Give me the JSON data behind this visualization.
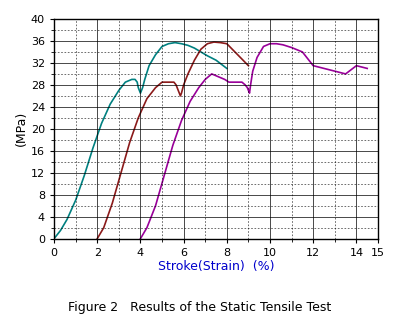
{
  "title": "Figure 2   Results of the Static Tensile Test",
  "xlabel": "Stroke(Strain)  (%)",
  "ylabel": "(MPa)",
  "xlim": [
    0,
    15
  ],
  "ylim": [
    0,
    40
  ],
  "xticks_major": [
    0,
    2,
    4,
    6,
    8,
    10,
    12,
    14,
    15
  ],
  "yticks_major": [
    0,
    4,
    8,
    12,
    16,
    20,
    24,
    28,
    32,
    36,
    40
  ],
  "xticks_minor_interval": 1,
  "yticks_minor_interval": 2,
  "curves": [
    {
      "color": "#008080",
      "points_x": [
        0.0,
        0.3,
        0.6,
        1.0,
        1.4,
        1.8,
        2.2,
        2.6,
        3.0,
        3.3,
        3.6,
        3.75,
        3.85,
        3.9,
        3.95,
        4.0,
        4.05,
        4.1,
        4.2,
        4.4,
        4.7,
        5.0,
        5.3,
        5.6,
        5.9,
        6.2,
        6.5,
        6.8,
        7.1,
        7.5,
        8.0
      ],
      "points_y": [
        0.0,
        1.5,
        3.5,
        7.0,
        11.5,
        16.5,
        21.0,
        24.5,
        27.0,
        28.5,
        29.0,
        29.0,
        28.5,
        27.5,
        27.0,
        26.5,
        27.0,
        27.5,
        29.0,
        31.5,
        33.5,
        35.0,
        35.5,
        35.7,
        35.5,
        35.2,
        34.7,
        34.0,
        33.3,
        32.5,
        31.0
      ]
    },
    {
      "color": "#8B1A1A",
      "points_x": [
        2.0,
        2.3,
        2.7,
        3.1,
        3.5,
        3.9,
        4.3,
        4.7,
        5.0,
        5.3,
        5.55,
        5.65,
        5.7,
        5.75,
        5.8,
        5.85,
        5.9,
        6.0,
        6.2,
        6.5,
        6.8,
        7.1,
        7.4,
        7.7,
        8.0,
        8.5,
        9.0
      ],
      "points_y": [
        0.0,
        2.0,
        6.5,
        12.0,
        17.5,
        22.0,
        25.5,
        27.5,
        28.5,
        28.5,
        28.5,
        28.0,
        27.5,
        27.0,
        26.5,
        26.0,
        26.5,
        28.0,
        30.0,
        32.5,
        34.5,
        35.5,
        35.8,
        35.7,
        35.5,
        33.5,
        31.5
      ]
    },
    {
      "color": "#990099",
      "points_x": [
        4.0,
        4.3,
        4.7,
        5.1,
        5.5,
        5.9,
        6.3,
        6.7,
        7.0,
        7.3,
        7.6,
        7.9,
        8.1,
        8.3,
        8.5,
        8.7,
        8.85,
        8.95,
        9.0,
        9.05,
        9.1,
        9.2,
        9.4,
        9.7,
        10.0,
        10.3,
        10.6,
        11.0,
        11.5,
        12.0,
        12.5,
        13.0,
        13.5,
        14.0,
        14.5
      ],
      "points_y": [
        0.0,
        2.0,
        6.0,
        11.5,
        17.0,
        21.5,
        25.0,
        27.5,
        29.0,
        30.0,
        29.5,
        29.0,
        28.5,
        28.5,
        28.5,
        28.5,
        28.0,
        27.5,
        27.0,
        26.5,
        28.0,
        30.5,
        33.0,
        35.0,
        35.5,
        35.5,
        35.3,
        34.8,
        34.0,
        31.5,
        31.0,
        30.5,
        30.0,
        31.5,
        31.0
      ]
    }
  ],
  "grid_color": "#000000",
  "minor_grid_linestyle": "--",
  "major_grid_linestyle": "-",
  "grid_linewidth": 0.5,
  "minor_grid_linewidth": 0.4,
  "background_color": "#ffffff",
  "xlabel_color": "#0000cc",
  "title_fontsize": 9,
  "axis_label_fontsize": 9,
  "tick_fontsize": 8,
  "curve_linewidth": 1.2
}
